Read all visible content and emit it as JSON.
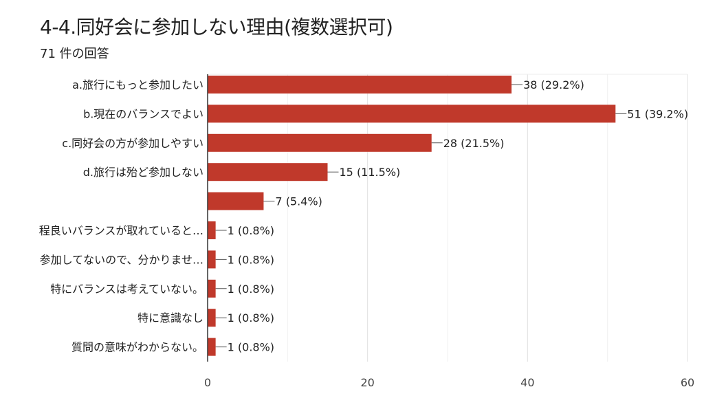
{
  "chart_data": {
    "type": "bar",
    "orientation": "horizontal",
    "title": "4-4.同好会に参加しない理由(複数選択可)",
    "subtitle": "71 件の回答",
    "categories": [
      "a.旅行にもっと参加したい",
      "b.現在のバランスでよい",
      "c.同好会の方が参加しやすい",
      "d.旅行は殆ど参加しない",
      "",
      "程良いバランスが取れていると…",
      "参加してないので、分かりませ…",
      "特にバランスは考えていない。",
      "特に意識なし",
      "質問の意味がわからない。"
    ],
    "values": [
      38,
      51,
      28,
      15,
      7,
      1,
      1,
      1,
      1,
      1
    ],
    "data_labels": [
      "38 (29.2%)",
      "51 (39.2%)",
      "28 (21.5%)",
      "15 (11.5%)",
      "7 (5.4%)",
      "1 (0.8%)",
      "1 (0.8%)",
      "1 (0.8%)",
      "1 (0.8%)",
      "1 (0.8%)"
    ],
    "xlim": [
      0,
      60
    ],
    "xticks": [
      "0",
      "20",
      "40",
      "60"
    ],
    "grid": true,
    "bar_color": "#c0392b"
  }
}
